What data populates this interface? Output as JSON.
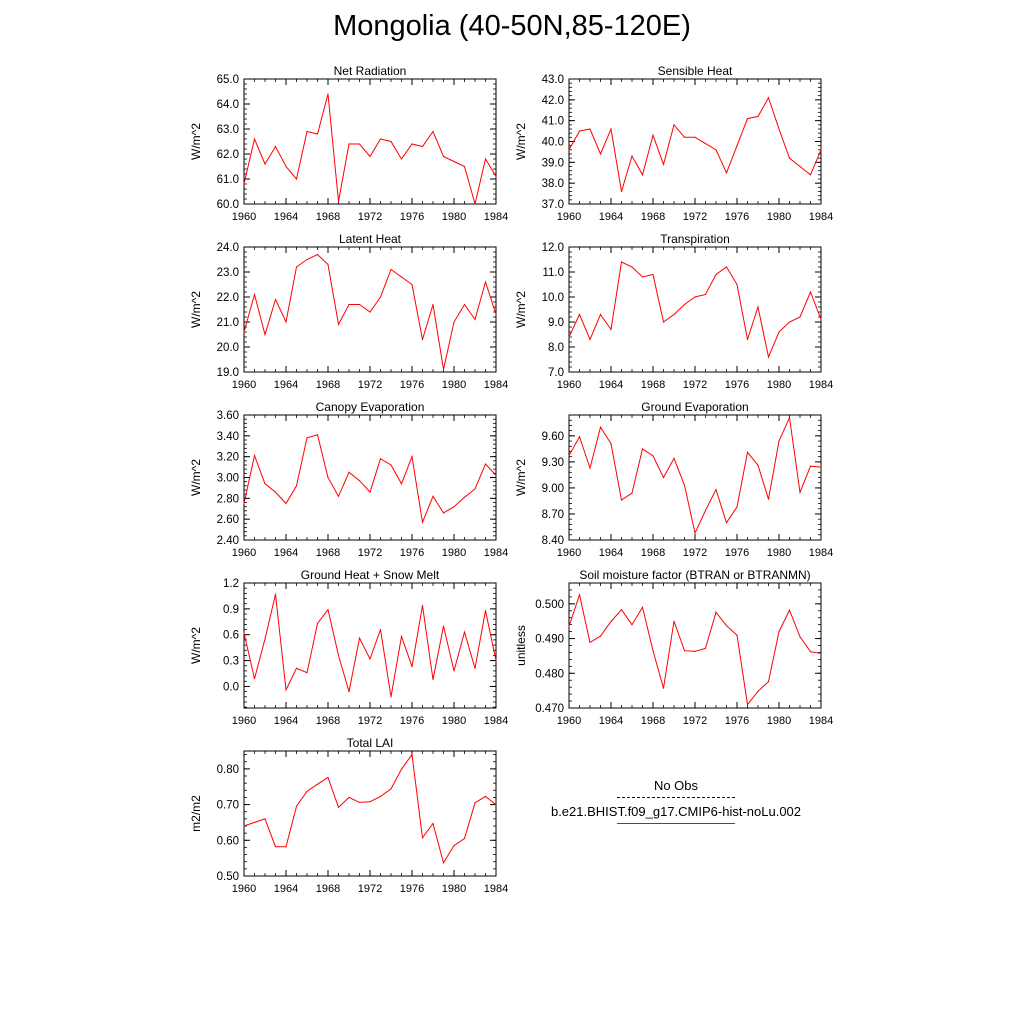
{
  "title": "Mongolia (40-50N,85-120E)",
  "legend": {
    "items": [
      {
        "label": "No Obs",
        "color": "#000080",
        "style": "dashed"
      },
      {
        "label": "b.e21.BHIST.f09_g17.CMIP6-hist-noLu.002",
        "color": "#ff0000",
        "style": "solid"
      }
    ]
  },
  "chart_data": [
    {
      "type": "line",
      "title": "Net Radiation",
      "ylabel": "W/m^2",
      "xlim": [
        1960,
        1984
      ],
      "ylim": [
        60.0,
        65.0
      ],
      "xticks": [
        1960,
        1964,
        1968,
        1972,
        1976,
        1980,
        1984
      ],
      "yticks": [
        "60.0",
        "61.0",
        "62.0",
        "63.0",
        "64.0",
        "65.0"
      ],
      "x": [
        1960,
        1961,
        1962,
        1963,
        1964,
        1965,
        1966,
        1967,
        1968,
        1969,
        1970,
        1971,
        1972,
        1973,
        1974,
        1975,
        1976,
        1977,
        1978,
        1979,
        1980,
        1981,
        1982,
        1983,
        1984
      ],
      "series": [
        {
          "color": "#ff0000",
          "values": [
            60.8,
            62.6,
            61.6,
            62.3,
            61.5,
            61.0,
            62.9,
            62.8,
            64.4,
            60.1,
            62.4,
            62.4,
            61.9,
            62.6,
            62.5,
            61.8,
            62.4,
            62.3,
            62.9,
            61.9,
            61.7,
            61.5,
            60.0,
            61.8,
            61.1
          ]
        }
      ]
    },
    {
      "type": "line",
      "title": "Sensible Heat",
      "ylabel": "W/m^2",
      "xlim": [
        1960,
        1984
      ],
      "ylim": [
        37.0,
        43.0
      ],
      "xticks": [
        1960,
        1964,
        1968,
        1972,
        1976,
        1980,
        1984
      ],
      "yticks": [
        "37.0",
        "38.0",
        "39.0",
        "40.0",
        "41.0",
        "42.0",
        "43.0"
      ],
      "x": [
        1960,
        1961,
        1962,
        1963,
        1964,
        1965,
        1966,
        1967,
        1968,
        1969,
        1970,
        1971,
        1972,
        1973,
        1974,
        1975,
        1976,
        1977,
        1978,
        1979,
        1980,
        1981,
        1982,
        1983,
        1984
      ],
      "series": [
        {
          "color": "#ff0000",
          "values": [
            39.6,
            40.5,
            40.6,
            39.4,
            40.6,
            37.6,
            39.3,
            38.4,
            40.3,
            38.9,
            40.8,
            40.2,
            40.2,
            39.9,
            39.6,
            38.5,
            39.8,
            41.1,
            41.2,
            42.1,
            40.6,
            39.2,
            38.8,
            38.4,
            39.6
          ]
        }
      ]
    },
    {
      "type": "line",
      "title": "Latent Heat",
      "ylabel": "W/m^2",
      "xlim": [
        1960,
        1984
      ],
      "ylim": [
        19.0,
        24.0
      ],
      "xticks": [
        1960,
        1964,
        1968,
        1972,
        1976,
        1980,
        1984
      ],
      "yticks": [
        "19.0",
        "20.0",
        "21.0",
        "22.0",
        "23.0",
        "24.0"
      ],
      "x": [
        1960,
        1961,
        1962,
        1963,
        1964,
        1965,
        1966,
        1967,
        1968,
        1969,
        1970,
        1971,
        1972,
        1973,
        1974,
        1975,
        1976,
        1977,
        1978,
        1979,
        1980,
        1981,
        1982,
        1983,
        1984
      ],
      "series": [
        {
          "color": "#ff0000",
          "values": [
            20.6,
            22.1,
            20.5,
            21.9,
            21.0,
            23.2,
            23.5,
            23.7,
            23.3,
            20.9,
            21.7,
            21.7,
            21.4,
            22.0,
            23.1,
            22.8,
            22.5,
            20.3,
            21.7,
            19.1,
            21.0,
            21.7,
            21.1,
            22.6,
            21.3
          ]
        }
      ]
    },
    {
      "type": "line",
      "title": "Transpiration",
      "ylabel": "W/m^2",
      "xlim": [
        1960,
        1984
      ],
      "ylim": [
        7.0,
        12.0
      ],
      "xticks": [
        1960,
        1964,
        1968,
        1972,
        1976,
        1980,
        1984
      ],
      "yticks": [
        "7.0",
        "8.0",
        "9.0",
        "10.0",
        "11.0",
        "12.0"
      ],
      "x": [
        1960,
        1961,
        1962,
        1963,
        1964,
        1965,
        1966,
        1967,
        1968,
        1969,
        1970,
        1971,
        1972,
        1973,
        1974,
        1975,
        1976,
        1977,
        1978,
        1979,
        1980,
        1981,
        1982,
        1983,
        1984
      ],
      "series": [
        {
          "color": "#ff0000",
          "values": [
            8.4,
            9.3,
            8.3,
            9.3,
            8.7,
            11.4,
            11.2,
            10.8,
            10.9,
            9.0,
            9.3,
            9.7,
            10.0,
            10.1,
            10.9,
            11.2,
            10.5,
            8.3,
            9.6,
            7.6,
            8.6,
            9.0,
            9.2,
            10.2,
            9.1
          ]
        }
      ]
    },
    {
      "type": "line",
      "title": "Canopy Evaporation",
      "ylabel": "W/m^2",
      "xlim": [
        1960,
        1984
      ],
      "ylim": [
        2.4,
        3.6
      ],
      "xticks": [
        1960,
        1964,
        1968,
        1972,
        1976,
        1980,
        1984
      ],
      "yticks": [
        "2.40",
        "2.60",
        "2.80",
        "3.00",
        "3.20",
        "3.40",
        "3.60"
      ],
      "x": [
        1960,
        1961,
        1962,
        1963,
        1964,
        1965,
        1966,
        1967,
        1968,
        1969,
        1970,
        1971,
        1972,
        1973,
        1974,
        1975,
        1976,
        1977,
        1978,
        1979,
        1980,
        1981,
        1982,
        1983,
        1984
      ],
      "series": [
        {
          "color": "#ff0000",
          "values": [
            2.75,
            3.21,
            2.94,
            2.86,
            2.75,
            2.92,
            3.38,
            3.41,
            3.0,
            2.82,
            3.05,
            2.97,
            2.86,
            3.18,
            3.12,
            2.94,
            3.2,
            2.57,
            2.82,
            2.66,
            2.72,
            2.81,
            2.89,
            3.13,
            3.02
          ]
        }
      ]
    },
    {
      "type": "line",
      "title": "Ground Evaporation",
      "ylabel": "W/m^2",
      "xlim": [
        1960,
        1984
      ],
      "ylim": [
        8.4,
        9.84
      ],
      "xticks": [
        1960,
        1964,
        1968,
        1972,
        1976,
        1980,
        1984
      ],
      "yticks": [
        "8.40",
        "8.70",
        "9.00",
        "9.30",
        "9.60"
      ],
      "x": [
        1960,
        1961,
        1962,
        1963,
        1964,
        1965,
        1966,
        1967,
        1968,
        1969,
        1970,
        1971,
        1972,
        1973,
        1974,
        1975,
        1976,
        1977,
        1978,
        1979,
        1980,
        1981,
        1982,
        1983,
        1984
      ],
      "series": [
        {
          "color": "#ff0000",
          "values": [
            9.37,
            9.59,
            9.23,
            9.7,
            9.51,
            8.86,
            8.94,
            9.45,
            9.37,
            9.12,
            9.34,
            9.03,
            8.48,
            8.74,
            8.98,
            8.6,
            8.78,
            9.41,
            9.26,
            8.87,
            9.54,
            9.81,
            8.95,
            9.25,
            9.24
          ]
        }
      ]
    },
    {
      "type": "line",
      "title": "Ground Heat + Snow Melt",
      "ylabel": "W/m^2",
      "xlim": [
        1960,
        1984
      ],
      "ylim": [
        -0.25,
        1.2
      ],
      "xticks": [
        1960,
        1964,
        1968,
        1972,
        1976,
        1980,
        1984
      ],
      "yticks": [
        "0.0",
        "0.3",
        "0.6",
        "0.9",
        "1.2"
      ],
      "x": [
        1960,
        1961,
        1962,
        1963,
        1964,
        1965,
        1966,
        1967,
        1968,
        1969,
        1970,
        1971,
        1972,
        1973,
        1974,
        1975,
        1976,
        1977,
        1978,
        1979,
        1980,
        1981,
        1982,
        1983,
        1984
      ],
      "series": [
        {
          "color": "#ff0000",
          "values": [
            0.62,
            0.09,
            0.55,
            1.07,
            -0.04,
            0.21,
            0.16,
            0.73,
            0.89,
            0.36,
            -0.06,
            0.56,
            0.32,
            0.66,
            -0.12,
            0.58,
            0.23,
            0.94,
            0.08,
            0.7,
            0.18,
            0.63,
            0.21,
            0.88,
            0.3
          ]
        }
      ]
    },
    {
      "type": "line",
      "title": "Soil moisture factor (BTRAN or BTRANMN)",
      "ylabel": "unitless",
      "xlim": [
        1960,
        1984
      ],
      "ylim": [
        0.47,
        0.506
      ],
      "xticks": [
        1960,
        1964,
        1968,
        1972,
        1976,
        1980,
        1984
      ],
      "yticks": [
        "0.470",
        "0.480",
        "0.490",
        "0.500"
      ],
      "x": [
        1960,
        1961,
        1962,
        1963,
        1964,
        1965,
        1966,
        1967,
        1968,
        1969,
        1970,
        1971,
        1972,
        1973,
        1974,
        1975,
        1976,
        1977,
        1978,
        1979,
        1980,
        1981,
        1982,
        1983,
        1984
      ],
      "series": [
        {
          "color": "#ff0000",
          "values": [
            0.4935,
            0.5026,
            0.4889,
            0.4907,
            0.4949,
            0.4983,
            0.494,
            0.499,
            0.4865,
            0.4757,
            0.495,
            0.4865,
            0.4863,
            0.4872,
            0.4976,
            0.4937,
            0.491,
            0.471,
            0.4748,
            0.4776,
            0.492,
            0.4982,
            0.4905,
            0.4862,
            0.4857
          ]
        }
      ]
    },
    {
      "type": "line",
      "title": "Total LAI",
      "ylabel": "m2/m2",
      "xlim": [
        1960,
        1984
      ],
      "ylim": [
        0.5,
        0.85
      ],
      "xticks": [
        1960,
        1964,
        1968,
        1972,
        1976,
        1980,
        1984
      ],
      "yticks": [
        "0.50",
        "0.60",
        "0.70",
        "0.80"
      ],
      "x": [
        1960,
        1961,
        1962,
        1963,
        1964,
        1965,
        1966,
        1967,
        1968,
        1969,
        1970,
        1971,
        1972,
        1973,
        1974,
        1975,
        1976,
        1977,
        1978,
        1979,
        1980,
        1981,
        1982,
        1983,
        1984
      ],
      "series": [
        {
          "color": "#ff0000",
          "values": [
            0.64,
            0.65,
            0.66,
            0.582,
            0.582,
            0.695,
            0.737,
            0.757,
            0.776,
            0.692,
            0.72,
            0.706,
            0.708,
            0.723,
            0.744,
            0.799,
            0.84,
            0.607,
            0.647,
            0.537,
            0.585,
            0.605,
            0.705,
            0.723,
            0.699
          ]
        }
      ]
    }
  ]
}
